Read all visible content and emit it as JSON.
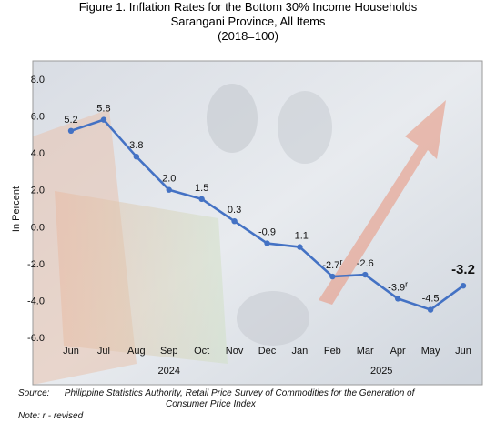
{
  "header": {
    "title_line1": "Figure 1. Inflation Rates for the Bottom 30% Income Households",
    "title_line2": "Sarangani Province, All Items",
    "title_line3": "(2018=100)"
  },
  "chart_data": {
    "type": "line",
    "title": "Figure 1. Inflation Rates for the Bottom 30% Income Households Sarangani Province, All Items (2018=100)",
    "xlabel": "",
    "ylabel": "In Percent",
    "ylim": [
      -6.0,
      8.0
    ],
    "yticks": [
      "8.0",
      "6.0",
      "4.0",
      "2.0",
      "0.0",
      "-2.0",
      "-4.0",
      "-6.0"
    ],
    "ytick_values": [
      8,
      6,
      4,
      2,
      0,
      -2,
      -4,
      -6
    ],
    "categories": [
      "Jun",
      "Jul",
      "Aug",
      "Sep",
      "Oct",
      "Nov",
      "Dec",
      "Jan",
      "Feb",
      "Mar",
      "Apr",
      "May",
      "Jun"
    ],
    "year_labels": [
      {
        "label": "2024",
        "from": 0,
        "to": 6
      },
      {
        "label": "2025",
        "from": 7,
        "to": 12
      }
    ],
    "series": [
      {
        "values": [
          5.2,
          5.8,
          3.8,
          2.0,
          1.5,
          0.3,
          -0.9,
          -1.1,
          -2.7,
          -2.6,
          -3.9,
          -4.5,
          -3.2
        ],
        "labels": [
          "5.2",
          "5.8",
          "3.8",
          "2.0",
          "1.5",
          "0.3",
          "-0.9",
          "-1.1",
          "-2.7",
          "-2.6",
          "-3.9",
          "-4.5",
          "-3.2"
        ],
        "revised_flags": [
          "",
          "",
          "",
          "",
          "",
          "",
          "",
          "",
          "r",
          "",
          "r",
          "",
          ""
        ],
        "color": "#4472C4"
      }
    ],
    "grid": false,
    "legend": "none"
  },
  "footer": {
    "source_label": "Source:",
    "source_text_line1": "Philippine Statistics Authority, Retail Price Survey of Commodities for the Generation of",
    "source_text_line2": "Consumer Price Index",
    "note": "Note: r - revised"
  },
  "colors": {
    "line": "#4472C4",
    "plot_border": "#9a9a9a",
    "background_tint": "#dfe3ea"
  }
}
